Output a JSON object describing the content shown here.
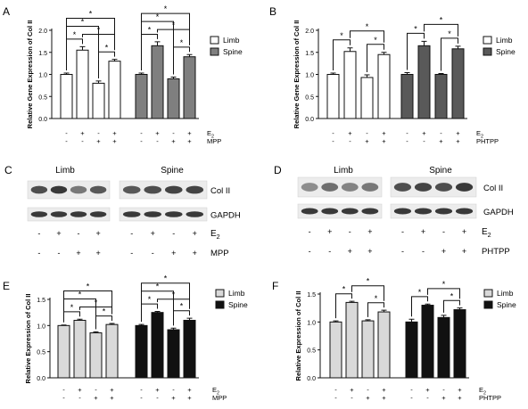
{
  "panel_letters": [
    "A",
    "B",
    "C",
    "D",
    "E",
    "F"
  ],
  "colors": {
    "limb_A": "#ffffff",
    "spine_A": "#7f7f7f",
    "limb_B": "#ffffff",
    "spine_B": "#595959",
    "limb_E": "#d9d9d9",
    "spine_E": "#111111",
    "limb_F": "#d9d9d9",
    "spine_F": "#111111",
    "edge": "#111111"
  },
  "chart_data": [
    {
      "panel": "A",
      "type": "bar",
      "ylabel": "Relative Gene Expression of Col II",
      "ylim": [
        0.0,
        2.0
      ],
      "yticks": [
        "0.0",
        "0.5",
        "1.0",
        "1.5",
        "2.0"
      ],
      "legend_position": "top-right",
      "series": [
        {
          "name": "Limb",
          "values": [
            1.0,
            1.55,
            0.8,
            1.3
          ],
          "errors": [
            0.03,
            0.08,
            0.05,
            0.04
          ]
        },
        {
          "name": "Spine",
          "values": [
            1.0,
            1.65,
            0.9,
            1.4
          ],
          "errors": [
            0.03,
            0.09,
            0.04,
            0.05
          ]
        }
      ],
      "conditions": {
        "row1": {
          "label": "E2",
          "label_main": "E",
          "label_sub": "2",
          "marks": [
            "-",
            "+",
            "-",
            "+"
          ]
        },
        "row2": {
          "label": "MPP",
          "marks": [
            "-",
            "-",
            "+",
            "+"
          ]
        }
      },
      "significance": "*"
    },
    {
      "panel": "B",
      "type": "bar",
      "ylabel": "Relative Gene Expression of Col II",
      "ylim": [
        0.0,
        2.0
      ],
      "yticks": [
        "0.0",
        "0.5",
        "1.0",
        "1.5",
        "2.0"
      ],
      "legend_position": "top-right",
      "series": [
        {
          "name": "Limb",
          "values": [
            1.0,
            1.52,
            0.93,
            1.45
          ],
          "errors": [
            0.03,
            0.08,
            0.06,
            0.05
          ]
        },
        {
          "name": "Spine",
          "values": [
            1.0,
            1.65,
            1.0,
            1.58
          ],
          "errors": [
            0.04,
            0.1,
            0.02,
            0.06
          ]
        }
      ],
      "conditions": {
        "row1": {
          "label": "E2",
          "label_main": "E",
          "label_sub": "2",
          "marks": [
            "-",
            "+",
            "-",
            "+"
          ]
        },
        "row2": {
          "label": "PHTPP",
          "marks": [
            "-",
            "-",
            "+",
            "+"
          ]
        }
      },
      "significance": "*"
    },
    {
      "panel": "E",
      "type": "bar",
      "ylabel": "Relative Expression of Col II",
      "ylim": [
        0.0,
        1.5
      ],
      "yticks": [
        "0.0",
        "0.5",
        "1.0",
        "1.5"
      ],
      "legend_position": "top-right",
      "series": [
        {
          "name": "Limb",
          "values": [
            1.0,
            1.1,
            0.86,
            1.02
          ],
          "errors": [
            0.01,
            0.02,
            0.02,
            0.02
          ]
        },
        {
          "name": "Spine",
          "values": [
            1.0,
            1.25,
            0.92,
            1.1
          ],
          "errors": [
            0.02,
            0.02,
            0.03,
            0.04
          ]
        }
      ],
      "conditions": {
        "row1": {
          "label": "E2",
          "label_main": "E",
          "label_sub": "2",
          "marks": [
            "-",
            "+",
            "-",
            "+"
          ]
        },
        "row2": {
          "label": "MPP",
          "marks": [
            "-",
            "-",
            "+",
            "+"
          ]
        }
      },
      "significance": "*"
    },
    {
      "panel": "F",
      "type": "bar",
      "ylabel": "Relative Expression of Col II",
      "ylim": [
        0.0,
        1.5
      ],
      "yticks": [
        "0.0",
        "0.5",
        "1.0",
        "1.5"
      ],
      "legend_position": "top-right",
      "series": [
        {
          "name": "Limb",
          "values": [
            1.0,
            1.35,
            1.02,
            1.18
          ],
          "errors": [
            0.02,
            0.02,
            0.02,
            0.03
          ]
        },
        {
          "name": "Spine",
          "values": [
            1.0,
            1.3,
            1.08,
            1.22
          ],
          "errors": [
            0.05,
            0.02,
            0.04,
            0.03
          ]
        }
      ],
      "conditions": {
        "row1": {
          "label": "E2",
          "label_main": "E",
          "label_sub": "2",
          "marks": [
            "-",
            "+",
            "-",
            "+"
          ]
        },
        "row2": {
          "label": "PHTPP",
          "marks": [
            "-",
            "-",
            "+",
            "+"
          ]
        }
      },
      "significance": "*"
    }
  ],
  "blots": [
    {
      "panel": "C",
      "group_labels": [
        "Limb",
        "Spine"
      ],
      "row_labels": [
        "Col II",
        "GAPDH"
      ],
      "conditions": {
        "row1": {
          "label": "E2",
          "label_main": "E",
          "label_sub": "2",
          "marks": [
            "-",
            "+",
            "-",
            "+"
          ]
        },
        "row2": {
          "label": "MPP",
          "marks": [
            "-",
            "-",
            "+",
            "+"
          ]
        }
      }
    },
    {
      "panel": "D",
      "group_labels": [
        "Limb",
        "Spine"
      ],
      "row_labels": [
        "Col II",
        "GAPDH"
      ],
      "conditions": {
        "row1": {
          "label": "E2",
          "label_main": "E",
          "label_sub": "2",
          "marks": [
            "-",
            "+",
            "-",
            "+"
          ]
        },
        "row2": {
          "label": "PHTPP",
          "marks": [
            "-",
            "-",
            "+",
            "+"
          ]
        }
      }
    }
  ]
}
